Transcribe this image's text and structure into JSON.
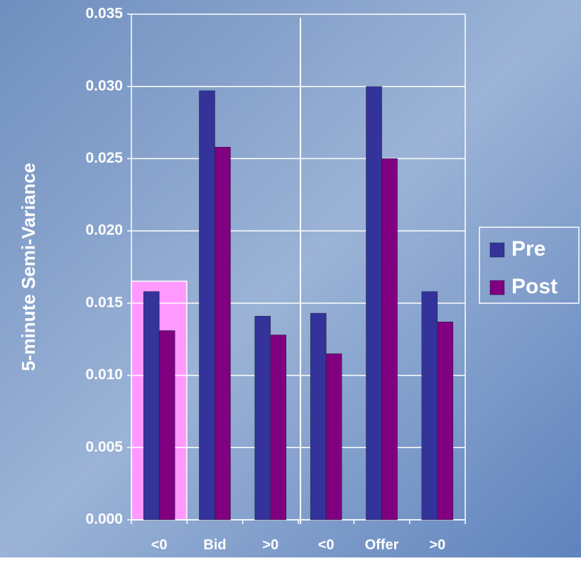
{
  "chart_data": {
    "type": "bar",
    "y_label": "5-minute Semi-Variance",
    "categories": [
      "<0",
      "Bid",
      ">0",
      "<0",
      "Offer",
      ">0"
    ],
    "series": [
      {
        "name": "Pre",
        "color": "#333399",
        "values": [
          0.0158,
          0.0297,
          0.0141,
          0.0143,
          0.03,
          0.0158
        ]
      },
      {
        "name": "Post",
        "color": "#800080",
        "values": [
          0.0131,
          0.0258,
          0.0128,
          0.0115,
          0.025,
          0.0137
        ]
      }
    ],
    "ylim": [
      0,
      0.035
    ],
    "yticks": [
      {
        "value": 0,
        "label": "0.000"
      },
      0.005,
      {
        "value": 0.01,
        "label": "0.010"
      },
      0.015,
      {
        "value": 0.02,
        "label": "0.020"
      },
      0.025,
      {
        "value": 0.03,
        "label": "0.030"
      },
      0.035
    ],
    "grid": true
  }
}
